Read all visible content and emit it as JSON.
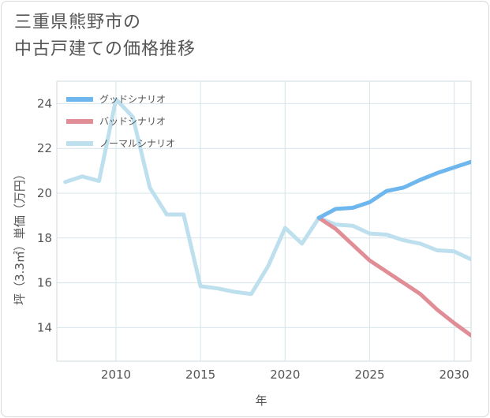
{
  "title": {
    "line1": "三重県熊野市の",
    "line2": "中古戸建ての価格推移"
  },
  "chart_data": {
    "type": "line",
    "xlabel": "年",
    "ylabel": "坪（3.3㎡）単価（万円）",
    "xlim": [
      2006.5,
      2031
    ],
    "ylim": [
      12.5,
      25
    ],
    "xticks": [
      2010,
      2015,
      2020,
      2025,
      2030
    ],
    "yticks": [
      14,
      16,
      18,
      20,
      22,
      24
    ],
    "grid": true,
    "legend_position": "top-left",
    "series": [
      {
        "name": "グッドシナリオ",
        "color": "#6db6ee",
        "x": [
          2022,
          2023,
          2024,
          2025,
          2026,
          2027,
          2028,
          2029,
          2030,
          2031
        ],
        "values": [
          18.9,
          19.3,
          19.35,
          19.6,
          20.1,
          20.25,
          20.6,
          20.9,
          21.15,
          21.4
        ]
      },
      {
        "name": "バッドシナリオ",
        "color": "#e08d96",
        "x": [
          2022,
          2023,
          2024,
          2025,
          2026,
          2027,
          2028,
          2029,
          2030,
          2031
        ],
        "values": [
          18.9,
          18.4,
          17.7,
          17.0,
          16.5,
          16.0,
          15.5,
          14.8,
          14.2,
          13.65
        ]
      },
      {
        "name": "ノーマルシナリオ",
        "color": "#bee0ee",
        "x": [
          2007,
          2008,
          2009,
          2010,
          2011,
          2012,
          2013,
          2014,
          2015,
          2016,
          2017,
          2018,
          2019,
          2020,
          2021,
          2022,
          2023,
          2024,
          2025,
          2026,
          2027,
          2028,
          2029,
          2030,
          2031
        ],
        "values": [
          20.5,
          20.75,
          20.55,
          24.2,
          23.4,
          20.25,
          19.05,
          19.05,
          15.85,
          15.75,
          15.6,
          15.5,
          16.75,
          18.45,
          17.75,
          18.9,
          18.6,
          18.55,
          18.2,
          18.15,
          17.9,
          17.75,
          17.45,
          17.4,
          17.05
        ]
      }
    ]
  }
}
